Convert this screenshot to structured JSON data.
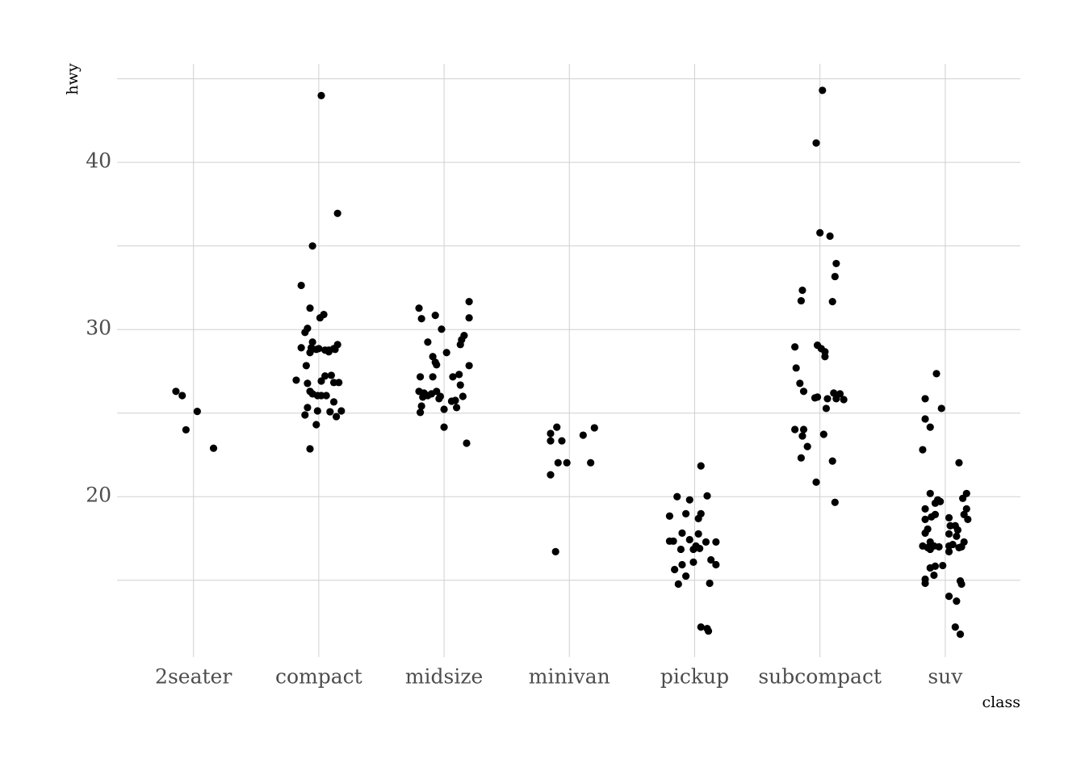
{
  "chart_data": {
    "type": "scatter",
    "xlabel": "class",
    "ylabel": "hwy",
    "color": "#000000",
    "grid": true,
    "xlim": [
      0.39,
      7.6
    ],
    "ylim": [
      10.4,
      45.9
    ],
    "xticks": [
      {
        "value": 1,
        "label": "2seater"
      },
      {
        "value": 2,
        "label": "compact"
      },
      {
        "value": 3,
        "label": "midsize"
      },
      {
        "value": 4,
        "label": "minivan"
      },
      {
        "value": 5,
        "label": "pickup"
      },
      {
        "value": 6,
        "label": "subcompact"
      },
      {
        "value": 7,
        "label": "suv"
      }
    ],
    "yticks": [
      20,
      30,
      40
    ],
    "yminor": [
      15,
      25,
      35,
      45
    ],
    "x": [
      0.86,
      0.91,
      1.03,
      0.94,
      1.16,
      2.02,
      2.15,
      1.95,
      1.86,
      1.93,
      2.04,
      2.01,
      1.89,
      1.91,
      1.86,
      1.93,
      1.95,
      1.94,
      1.98,
      2.0,
      2.05,
      2.08,
      2.08,
      2.12,
      2.15,
      2.13,
      1.82,
      1.9,
      1.91,
      1.93,
      1.95,
      1.99,
      2.02,
      2.06,
      1.91,
      1.89,
      1.99,
      2.09,
      2.12,
      2.14,
      2.18,
      1.98,
      1.93,
      2.05,
      2.02,
      2.1,
      2.12,
      2.16,
      2.8,
      2.82,
      2.93,
      2.98,
      3.2,
      3.2,
      3.16,
      3.14,
      3.13,
      2.87,
      3.02,
      2.91,
      2.93,
      2.94,
      3.2,
      2.81,
      2.91,
      3.07,
      3.12,
      3.13,
      2.8,
      2.84,
      2.87,
      2.9,
      2.94,
      2.97,
      2.96,
      2.83,
      2.82,
      2.81,
      3.0,
      3.06,
      3.09,
      3.1,
      3.15,
      3.0,
      3.18,
      3.85,
      3.9,
      3.85,
      3.94,
      4.11,
      4.2,
      3.91,
      3.98,
      4.17,
      3.85,
      3.89,
      5.05,
      4.86,
      4.96,
      5.1,
      4.8,
      4.93,
      5.05,
      5.03,
      4.9,
      4.8,
      4.83,
      5.03,
      4.96,
      5.09,
      5.17,
      4.89,
      4.99,
      5.01,
      5.04,
      5.13,
      5.17,
      4.9,
      4.99,
      4.84,
      4.93,
      4.87,
      5.12,
      5.05,
      5.1,
      5.11,
      6.02,
      5.97,
      6.0,
      6.08,
      6.13,
      6.12,
      5.86,
      5.85,
      6.1,
      5.8,
      5.98,
      6.01,
      6.04,
      6.04,
      5.81,
      5.84,
      5.87,
      5.96,
      5.98,
      6.06,
      6.11,
      6.16,
      6.13,
      6.19,
      6.05,
      5.8,
      5.87,
      5.86,
      6.03,
      5.9,
      5.85,
      6.1,
      5.97,
      6.12,
      6.93,
      6.84,
      6.97,
      6.84,
      6.88,
      6.82,
      7.11,
      6.88,
      6.94,
      6.92,
      6.96,
      7.17,
      7.14,
      6.84,
      7.17,
      7.15,
      6.84,
      6.89,
      6.92,
      7.03,
      7.18,
      6.86,
      6.84,
      7.04,
      7.08,
      7.1,
      7.03,
      7.09,
      6.88,
      6.82,
      6.86,
      6.88,
      6.91,
      6.95,
      7.03,
      7.06,
      7.11,
      7.15,
      7.13,
      7.03,
      6.92,
      6.98,
      6.88,
      6.91,
      6.84,
      6.84,
      7.12,
      7.13,
      7.03,
      7.09,
      7.08,
      7.12
    ],
    "values": [
      26.3,
      26.05,
      25.1,
      24.0,
      22.9,
      44.0,
      36.95,
      35.0,
      32.64,
      31.28,
      30.9,
      30.7,
      29.83,
      30.07,
      28.91,
      28.62,
      29.25,
      28.91,
      28.81,
      28.86,
      28.77,
      28.77,
      28.67,
      28.86,
      29.1,
      28.81,
      26.97,
      27.84,
      26.78,
      26.3,
      26.15,
      26.05,
      26.05,
      26.05,
      25.33,
      24.89,
      25.13,
      25.08,
      25.67,
      24.79,
      25.13,
      24.31,
      22.86,
      27.22,
      26.92,
      27.26,
      26.83,
      26.83,
      31.28,
      30.65,
      30.85,
      30.02,
      31.67,
      30.7,
      29.64,
      29.39,
      29.1,
      29.25,
      28.62,
      28.38,
      28.04,
      27.89,
      27.84,
      27.17,
      27.17,
      27.17,
      27.31,
      26.68,
      26.3,
      26.2,
      26.05,
      26.15,
      26.3,
      26.0,
      25.86,
      25.96,
      25.42,
      25.04,
      25.23,
      25.71,
      25.76,
      25.33,
      26.0,
      24.16,
      23.2,
      23.78,
      24.16,
      23.34,
      23.34,
      23.68,
      24.12,
      22.03,
      22.03,
      22.03,
      21.31,
      16.71,
      21.84,
      20.0,
      19.81,
      20.05,
      18.84,
      18.98,
      18.98,
      18.69,
      17.82,
      17.34,
      17.34,
      17.77,
      17.43,
      17.29,
      17.29,
      16.85,
      16.85,
      17.05,
      16.9,
      16.22,
      15.93,
      15.93,
      16.08,
      15.64,
      15.25,
      14.77,
      14.82,
      12.2,
      12.11,
      11.96,
      44.31,
      41.16,
      35.79,
      35.59,
      33.95,
      33.17,
      32.35,
      31.72,
      31.67,
      28.96,
      29.06,
      28.86,
      28.67,
      28.38,
      27.7,
      26.78,
      26.3,
      25.91,
      25.96,
      25.86,
      26.2,
      26.15,
      25.86,
      25.81,
      25.28,
      24.02,
      24.02,
      23.63,
      23.73,
      23.0,
      22.32,
      22.13,
      20.87,
      19.66,
      27.36,
      25.86,
      25.28,
      24.65,
      24.16,
      22.81,
      22.03,
      20.19,
      19.81,
      19.61,
      19.71,
      20.19,
      19.9,
      19.27,
      19.27,
      18.93,
      18.64,
      18.79,
      18.93,
      18.74,
      18.64,
      18.06,
      17.82,
      18.26,
      18.26,
      18.01,
      17.77,
      17.63,
      17.29,
      17.05,
      16.95,
      16.85,
      17.05,
      17.0,
      17.05,
      17.14,
      16.95,
      17.29,
      17.0,
      16.71,
      15.84,
      15.88,
      15.74,
      15.3,
      15.06,
      14.82,
      14.96,
      14.77,
      14.04,
      13.75,
      12.2,
      11.77
    ]
  }
}
